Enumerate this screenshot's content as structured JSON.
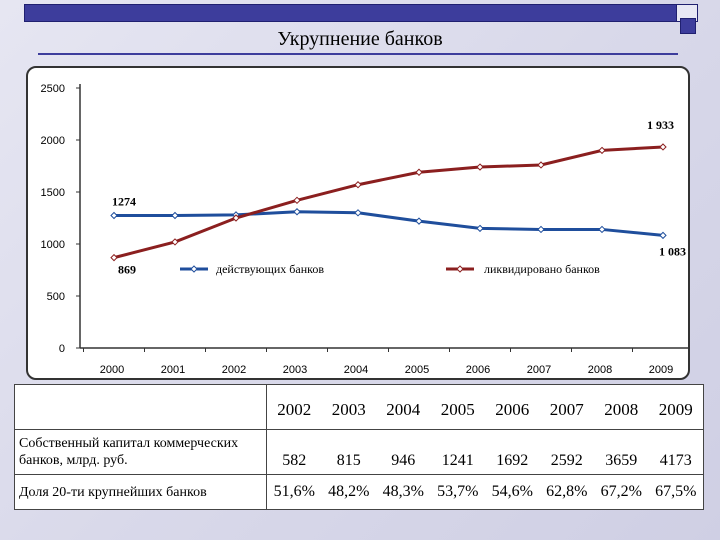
{
  "title": "Укрупнение банков",
  "chart_data": {
    "type": "line",
    "categories": [
      "2000",
      "2001",
      "2002",
      "2003",
      "2004",
      "2005",
      "2006",
      "2007",
      "2008",
      "2009"
    ],
    "ylim": [
      0,
      2500
    ],
    "y_ticks": [
      "0",
      "500",
      "1000",
      "1500",
      "2000",
      "2500"
    ],
    "grid": false,
    "legend_position": "center",
    "series": [
      {
        "name": "действующих банков",
        "color": "#1f4e9c",
        "values": [
          1274,
          1274,
          1280,
          1310,
          1300,
          1220,
          1150,
          1140,
          1140,
          1083
        ],
        "labels": {
          "first": "1274",
          "last": "1 083"
        }
      },
      {
        "name": "ликвидировано банков",
        "color": "#8b1f1f",
        "values": [
          869,
          1020,
          1250,
          1420,
          1570,
          1690,
          1740,
          1760,
          1900,
          1933
        ],
        "labels": {
          "first": "869",
          "last": "1 933"
        }
      }
    ]
  },
  "table": {
    "years": [
      "2002",
      "2003",
      "2004",
      "2005",
      "2006",
      "2007",
      "2008",
      "2009"
    ],
    "rows": [
      {
        "label": "Собственный капитал коммерческих банков, млрд. руб.",
        "values": [
          "582",
          "815",
          "946",
          "1241",
          "1692",
          "2592",
          "3659",
          "4173"
        ]
      },
      {
        "label": "Доля 20-ти крупнейших банков",
        "values": [
          "51,6%",
          "48,2%",
          "48,3%",
          "53,7%",
          "54,6%",
          "62,8%",
          "67,2%",
          "67,5%"
        ]
      }
    ]
  }
}
